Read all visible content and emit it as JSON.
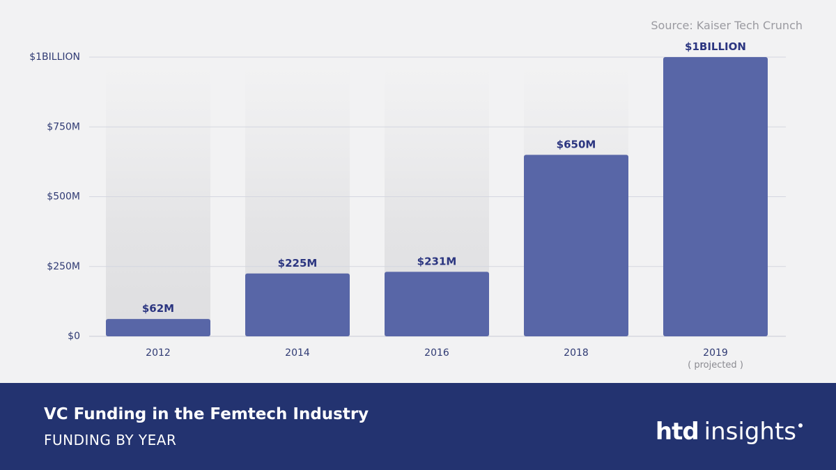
{
  "source": "Source: Kaiser Tech Crunch",
  "footer": {
    "title": "VC Funding in the Femtech Industry",
    "subtitle": "FUNDING BY YEAR",
    "logo_bold": "htd",
    "logo_light": "insights"
  },
  "colors": {
    "bar": "#5866a7",
    "label": "#2b3580",
    "footer_bg": "#233370",
    "gridline": "#d4d6e0"
  },
  "chart_data": {
    "type": "bar",
    "title": "VC Funding in the Femtech Industry",
    "subtitle": "FUNDING BY YEAR",
    "xlabel": "",
    "ylabel": "",
    "categories": [
      "2012",
      "2014",
      "2016",
      "2018",
      "2019"
    ],
    "category_notes": [
      "",
      "",
      "",
      "",
      "( projected )"
    ],
    "values": [
      62,
      225,
      231,
      650,
      1000
    ],
    "value_labels": [
      "$62M",
      "$225M",
      "$231M",
      "$650M",
      "$1BILLION"
    ],
    "unit": "millions USD",
    "ylim": [
      0,
      1000
    ],
    "yticks": [
      0,
      250,
      500,
      750,
      1000
    ],
    "ytick_labels": [
      "$0",
      "$250M",
      "$500M",
      "$750M",
      "$1BILLION"
    ],
    "grid": true
  }
}
